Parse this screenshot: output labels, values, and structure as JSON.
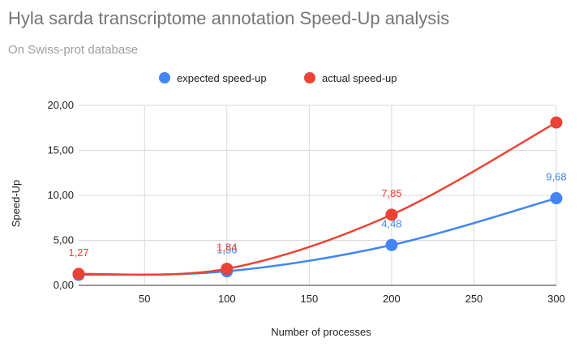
{
  "chart_data": {
    "type": "line",
    "title": "Hyla sarda transcriptome annotation Speed-Up analysis",
    "subtitle": "On Swiss-prot database",
    "xlabel": "Number of processes",
    "ylabel": "Speed-Up",
    "x_ticks": [
      "50",
      "100",
      "150",
      "200",
      "250",
      "300"
    ],
    "y_ticks": [
      "0,00",
      "5,00",
      "10,00",
      "15,00",
      "20,00"
    ],
    "xlim": [
      10,
      300
    ],
    "ylim": [
      0,
      20
    ],
    "grid": true,
    "legend_position": "top",
    "x": [
      10,
      100,
      200,
      300
    ],
    "series": [
      {
        "name": "expected speed-up",
        "color": "#4285f4",
        "values": [
          1.17,
          1.56,
          4.48,
          9.68
        ],
        "data_labels": [
          "",
          "1,56",
          "4,48",
          "9,68"
        ]
      },
      {
        "name": "actual speed-up",
        "color": "#ea4335",
        "values": [
          1.27,
          1.84,
          7.85,
          18.1
        ],
        "data_labels": [
          "1,27",
          "1,84",
          "7,85",
          ""
        ]
      }
    ]
  }
}
